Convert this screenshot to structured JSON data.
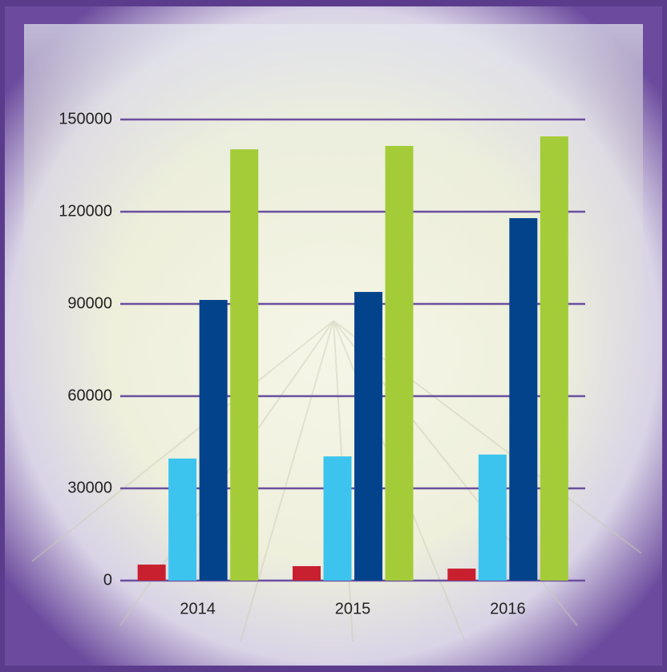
{
  "chart_data": {
    "type": "bar",
    "categories": [
      "2014",
      "2015",
      "2016"
    ],
    "series": [
      {
        "color": "#c8202e",
        "values": [
          5200,
          4700,
          3900
        ]
      },
      {
        "color": "#3cc4ef",
        "values": [
          39700,
          40400,
          41000
        ]
      },
      {
        "color": "#03438c",
        "values": [
          91300,
          93900,
          117900
        ]
      },
      {
        "color": "#a4cc38",
        "values": [
          140300,
          141400,
          144500
        ]
      }
    ],
    "ylim": [
      0,
      150000
    ],
    "yticks": [
      0,
      30000,
      60000,
      90000,
      120000,
      150000
    ],
    "grid": true,
    "grid_color": "#6b4fa0"
  }
}
